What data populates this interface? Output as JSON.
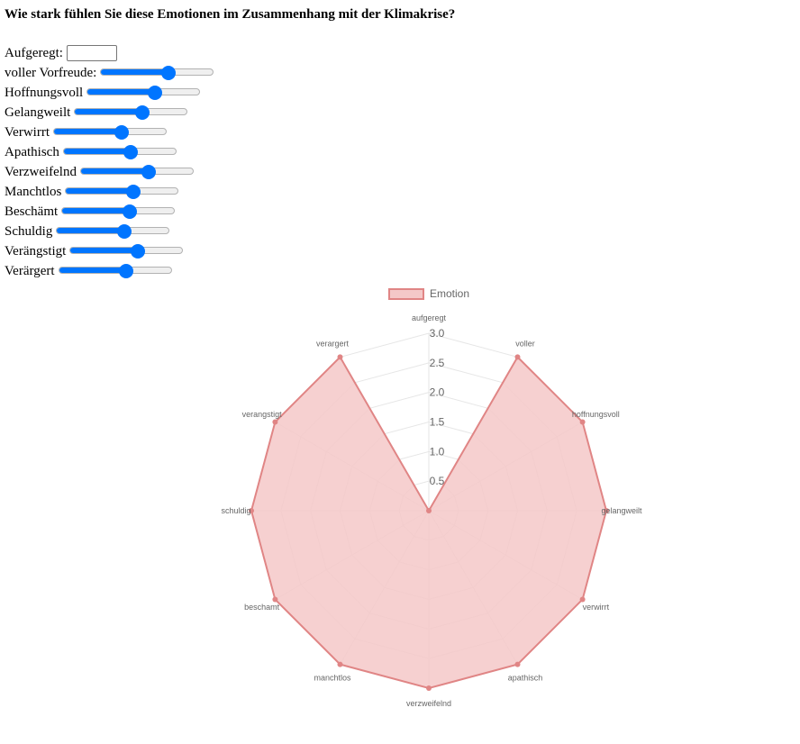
{
  "title": "Wie stark fühlen Sie diese Emotionen im Zusammenhang mit der Klimakrise?",
  "text_input": {
    "label": "Aufgeregt:",
    "value": ""
  },
  "sliders": [
    {
      "label": "voller Vorfreude:",
      "fraction": 0.6
    },
    {
      "label": "Hoffnungsvoll",
      "fraction": 0.6
    },
    {
      "label": "Gelangweilt",
      "fraction": 0.6
    },
    {
      "label": "Verwirrt",
      "fraction": 0.6
    },
    {
      "label": "Apathisch",
      "fraction": 0.6
    },
    {
      "label": "Verzweifelnd",
      "fraction": 0.6
    },
    {
      "label": "Manchtlos",
      "fraction": 0.6
    },
    {
      "label": "Beschämt",
      "fraction": 0.6
    },
    {
      "label": "Schuldig",
      "fraction": 0.6
    },
    {
      "label": "Verängstigt",
      "fraction": 0.6
    },
    {
      "label": "Verärgert",
      "fraction": 0.6
    }
  ],
  "colors": {
    "slider_accent": "#0075ff",
    "series_stroke": "#e08585",
    "series_fill": "#f4c8c8",
    "grid": "#e6e6e6"
  },
  "chart_data": {
    "type": "radar",
    "categories": [
      "aufgeregt",
      "voller",
      "hoffnungsvoll",
      "gelangweilt",
      "verwirrt",
      "apathisch",
      "verzweifelnd",
      "manchtlos",
      "beschamt",
      "schuldig",
      "verangstigt",
      "verargert"
    ],
    "series": [
      {
        "name": "Emotion",
        "values": [
          0,
          3,
          3,
          3,
          3,
          3,
          3,
          3,
          3,
          3,
          3,
          3
        ]
      }
    ],
    "rlim": [
      0,
      3
    ],
    "ticks": [
      "0.5",
      "1.0",
      "1.5",
      "2.0",
      "2.5",
      "3.0"
    ],
    "legend_position": "top",
    "grid": true
  }
}
